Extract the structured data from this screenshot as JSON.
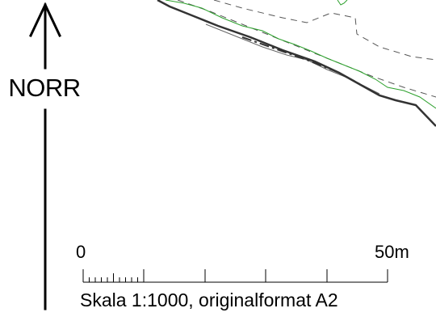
{
  "north_arrow": {
    "label": "NORR",
    "icon": "north-arrow-icon"
  },
  "scale_bar": {
    "start_label": "0",
    "end_label": "50m",
    "length_m": 50,
    "major_divisions": 5,
    "minor_divisions_first": 10,
    "caption": "Skala 1:1000, originalformat A2"
  },
  "map_lines": {
    "road_edge_color": "#333333",
    "contour_color": "#2ca02c",
    "boundary_color": "#555555"
  }
}
